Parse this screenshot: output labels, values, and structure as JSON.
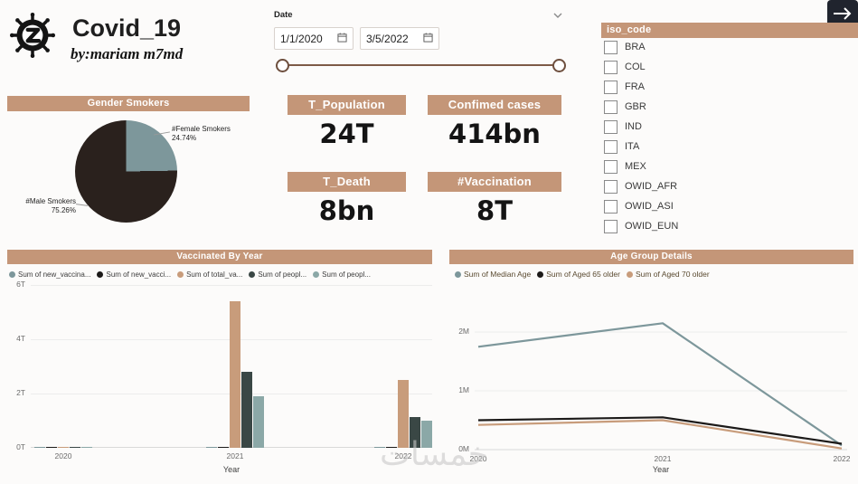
{
  "page": {
    "watermark": "خمسات"
  },
  "header": {
    "title": "Covid_19",
    "subtitle": "by:mariam m7md"
  },
  "date_slicer": {
    "label": "Date",
    "start": "1/1/2020",
    "end": "3/5/2022"
  },
  "iso_filter": {
    "title": "iso_code",
    "items": [
      "BRA",
      "COL",
      "FRA",
      "GBR",
      "IND",
      "ITA",
      "MEX",
      "OWID_AFR",
      "OWID_ASI",
      "OWID_EUN"
    ]
  },
  "kpis": {
    "population": {
      "label": "T_Population",
      "value": "24T"
    },
    "confirmed": {
      "label": "Confimed cases",
      "value": "414bn"
    },
    "death": {
      "label": "T_Death",
      "value": "8bn"
    },
    "vaccination": {
      "label": "#Vaccination",
      "value": "8T"
    }
  },
  "colors": {
    "accent": "#c49678",
    "slider": "#7d5a47",
    "arrow_bg": "#20242e",
    "pie_male": "#2a211d",
    "pie_female": "#7d979b"
  },
  "chart_data": [
    {
      "type": "pie",
      "title": "Gender Smokers",
      "labels": [
        {
          "name": "#Male Smokers",
          "pct": "75.26%"
        },
        {
          "name": "#Female Smokers",
          "pct": "24.74%"
        }
      ],
      "values": [
        75.26,
        24.74
      ],
      "colors": [
        "#2a211d",
        "#7d979b"
      ]
    },
    {
      "type": "bar",
      "title": "Vaccinated By Year",
      "categories": [
        "2020",
        "2021",
        "2022"
      ],
      "xlabel": "Year",
      "ylim": [
        0,
        6
      ],
      "yticks": [
        "0T",
        "2T",
        "4T",
        "6T"
      ],
      "series": [
        {
          "name": "Sum of new_vaccina...",
          "color": "#7d979b",
          "values": [
            0.02,
            0.05,
            0.03
          ]
        },
        {
          "name": "Sum of new_vacci...",
          "color": "#1c1a19",
          "values": [
            0.02,
            0.04,
            0.02
          ]
        },
        {
          "name": "Sum of total_va...",
          "color": "#c89c7b",
          "values": [
            0.03,
            5.4,
            2.5
          ]
        },
        {
          "name": "Sum of peopl...",
          "color": "#3a4745",
          "values": [
            0.02,
            2.8,
            1.15
          ]
        },
        {
          "name": "Sum of peopl...",
          "color": "#8ba8a7",
          "values": [
            0.02,
            1.9,
            1.0
          ]
        }
      ]
    },
    {
      "type": "line",
      "title": "Age Group Details",
      "x": [
        "2020",
        "2021",
        "2022"
      ],
      "xlabel": "Year",
      "ylim": [
        0,
        2.4
      ],
      "yticks": [
        "0M",
        "1M",
        "2M"
      ],
      "series": [
        {
          "name": "Sum of Median Age",
          "color": "#7d979b",
          "values": [
            1.75,
            2.15,
            0.07
          ]
        },
        {
          "name": "Sum of Aged 65 older",
          "color": "#1c1a19",
          "values": [
            0.5,
            0.55,
            0.1
          ]
        },
        {
          "name": "Sum of Aged 70 older",
          "color": "#c89c7b",
          "values": [
            0.42,
            0.5,
            0.02
          ]
        }
      ]
    }
  ]
}
